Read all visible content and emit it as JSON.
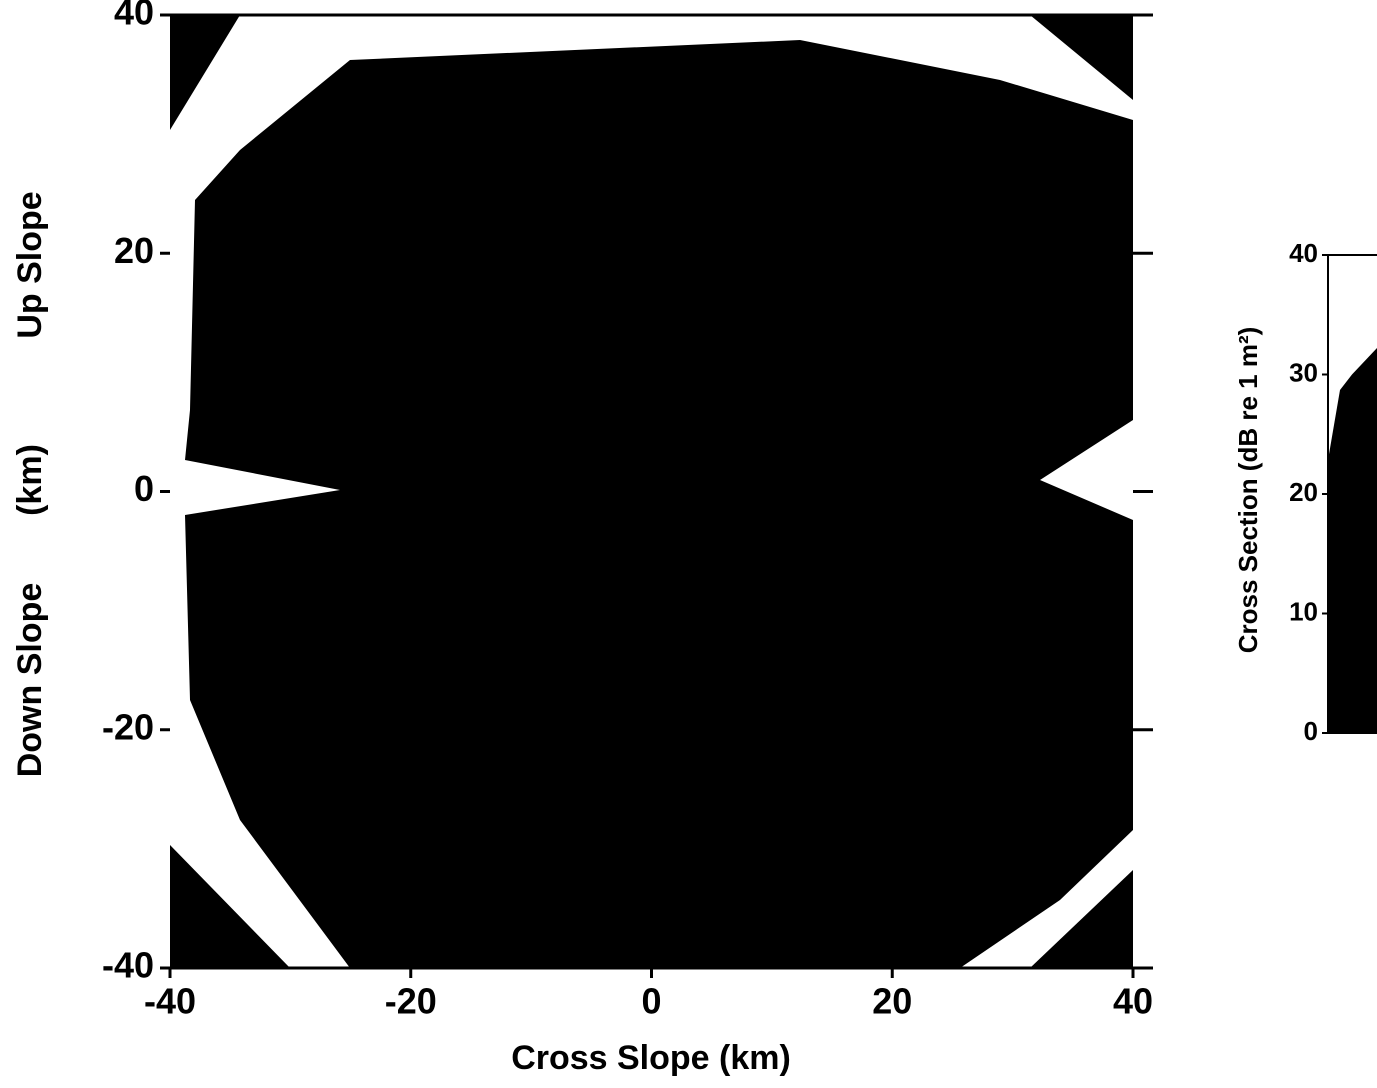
{
  "chart_data": {
    "type": "image",
    "x_label": "Cross Slope  (km)",
    "y_label_parts": [
      "Up Slope",
      "(km)",
      "Down Slope"
    ],
    "xlim": [
      -40,
      40
    ],
    "ylim": [
      -40,
      40
    ],
    "xticks": [
      -40,
      -20,
      0,
      20,
      40
    ],
    "yticks": [
      -40,
      -20,
      0,
      20,
      40
    ],
    "colorbar": {
      "label": "Cross Section  (dB re 1 m²)",
      "lim": [
        0,
        40
      ],
      "ticks": [
        0,
        10,
        20,
        30,
        40
      ]
    }
  }
}
